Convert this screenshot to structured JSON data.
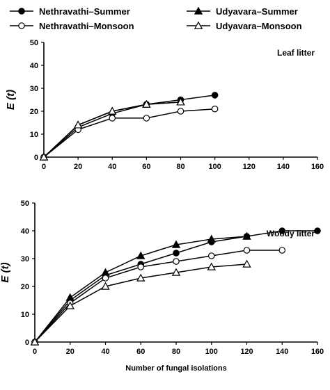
{
  "legend": [
    {
      "label": "Nethravathi–Summer",
      "marker": "circle",
      "fill": "#000000"
    },
    {
      "label": "Udyavara–Summer",
      "marker": "triangle",
      "fill": "#000000"
    },
    {
      "label": "Nethravathi–Monsoon",
      "marker": "circle",
      "fill": "#ffffff"
    },
    {
      "label": "Udyavara–Monsoon",
      "marker": "triangle",
      "fill": "#ffffff"
    }
  ],
  "chart_data": [
    {
      "type": "line",
      "title": "Leaf litter",
      "xlabel": "",
      "ylabel": "E (t)",
      "xlim": [
        0,
        160
      ],
      "ylim": [
        0,
        50
      ],
      "xticks": [
        "0",
        "20",
        "40",
        "60",
        "80",
        "100",
        "120",
        "140",
        "160"
      ],
      "yticks": [
        "0",
        "10",
        "20",
        "30",
        "40",
        "50"
      ],
      "grid": false,
      "series": [
        {
          "name": "Nethravathi–Summer",
          "x": [
            0,
            20,
            40,
            60,
            80,
            100
          ],
          "y": [
            0,
            13,
            19,
            23,
            25,
            27
          ]
        },
        {
          "name": "Udyavara–Summer",
          "x": [
            0,
            20,
            40,
            60,
            80
          ],
          "y": [
            0,
            14,
            20,
            23,
            24
          ]
        },
        {
          "name": "Nethravathi–Monsoon",
          "x": [
            0,
            20,
            40,
            60,
            80,
            100
          ],
          "y": [
            0,
            12,
            17,
            17,
            20,
            21
          ]
        },
        {
          "name": "Udyavara–Monsoon",
          "x": [
            0,
            20,
            40,
            60,
            80
          ],
          "y": [
            0,
            14,
            20,
            23,
            24
          ]
        }
      ]
    },
    {
      "type": "line",
      "title": "Woody litter",
      "xlabel": "Number of fungal isolations",
      "ylabel": "E (t)",
      "xlim": [
        0,
        160
      ],
      "ylim": [
        0,
        50
      ],
      "xticks": [
        "0",
        "20",
        "40",
        "60",
        "80",
        "100",
        "120",
        "140",
        "160"
      ],
      "yticks": [
        "0",
        "10",
        "20",
        "30",
        "40",
        "50"
      ],
      "grid": false,
      "series": [
        {
          "name": "Nethravathi–Summer",
          "x": [
            0,
            20,
            40,
            60,
            80,
            100,
            120,
            140,
            160
          ],
          "y": [
            0,
            15,
            24,
            28,
            32,
            36,
            38,
            40,
            40
          ]
        },
        {
          "name": "Udyavara–Summer",
          "x": [
            0,
            20,
            40,
            60,
            80,
            100,
            120
          ],
          "y": [
            0,
            16,
            25,
            31,
            35,
            37,
            38
          ]
        },
        {
          "name": "Nethravathi–Monsoon",
          "x": [
            0,
            20,
            40,
            60,
            80,
            100,
            120,
            140
          ],
          "y": [
            0,
            14,
            23,
            27,
            29,
            31,
            33,
            33
          ]
        },
        {
          "name": "Udyavara–Monsoon",
          "x": [
            0,
            20,
            40,
            60,
            80,
            100,
            120
          ],
          "y": [
            0,
            13,
            20,
            23,
            25,
            27,
            28
          ]
        }
      ]
    }
  ]
}
